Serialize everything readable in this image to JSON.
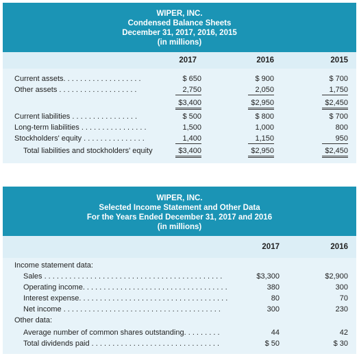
{
  "balance": {
    "title": [
      "WIPER, INC.",
      "Condensed Balance Sheets",
      "December 31, 2017, 2016, 2015",
      "(in millions)"
    ],
    "columns": [
      "2017",
      "2016",
      "2015"
    ],
    "rows": [
      {
        "label": "Current assets. . . . . . . . . . . . . . . . . . .",
        "v": [
          "$  650",
          "$  900",
          "$  700"
        ]
      },
      {
        "label": "Other assets  . . . . . . . . . . . . . . . . . . .",
        "v": [
          "2,750",
          "2,050",
          "1,750"
        ]
      },
      {
        "label": "",
        "v": [
          "$3,400",
          "$2,950",
          "$2,450"
        ]
      },
      {
        "label": "Current liabilities  . . . . . . . . . . . . . . . .",
        "v": [
          "$  500",
          "$  800",
          "$  700"
        ]
      },
      {
        "label": "Long-term liabilities . . . . . . . . . . . . . . . .",
        "v": [
          "1,500",
          "1,000",
          "800"
        ]
      },
      {
        "label": "Stockholders' equity . . . . . . . . . . . . . . .",
        "v": [
          "1,400",
          "1,150",
          "950"
        ]
      },
      {
        "label": "Total liabilities and stockholders' equity",
        "v": [
          "$3,400",
          "$2,950",
          "$2,450"
        ]
      }
    ]
  },
  "income": {
    "title": [
      "WIPER, INC.",
      "Selected Income Statement and Other Data",
      "For the Years Ended December 31, 2017 and 2016",
      "(in millions)"
    ],
    "columns": [
      "2017",
      "2016"
    ],
    "section1": "Income statement data:",
    "section2": "Other data:",
    "rows": [
      {
        "label": "Sales . . . . . . . . . . . . . . . . . . . . . . . . . . . . . . . . . . . . . . . . . . .",
        "v": [
          "$3,300",
          "$2,900"
        ]
      },
      {
        "label": "Operating income. . . . . . . . . . . . . . . . . . . . . . . . . . . . . . . . . . .",
        "v": [
          "380",
          "300"
        ]
      },
      {
        "label": "Interest expense. . . . . . . . . . . . . . . . . . . . . . . . . . . . . . . . . . . .",
        "v": [
          "80",
          "70"
        ]
      },
      {
        "label": "Net income  . . . . . . . . . . . . . . . . . . . . . . . . . . . . . . . . . . . . . .",
        "v": [
          "300",
          "230"
        ]
      },
      {
        "label": "Average number of common shares outstanding. . . . . . . . .",
        "v": [
          "44",
          "42"
        ]
      },
      {
        "label": "Total dividends paid . . . . . . . . . . . . . . . . . . . . . . . . . . . . . . .",
        "v": [
          "$    50",
          "$    30"
        ]
      }
    ]
  }
}
